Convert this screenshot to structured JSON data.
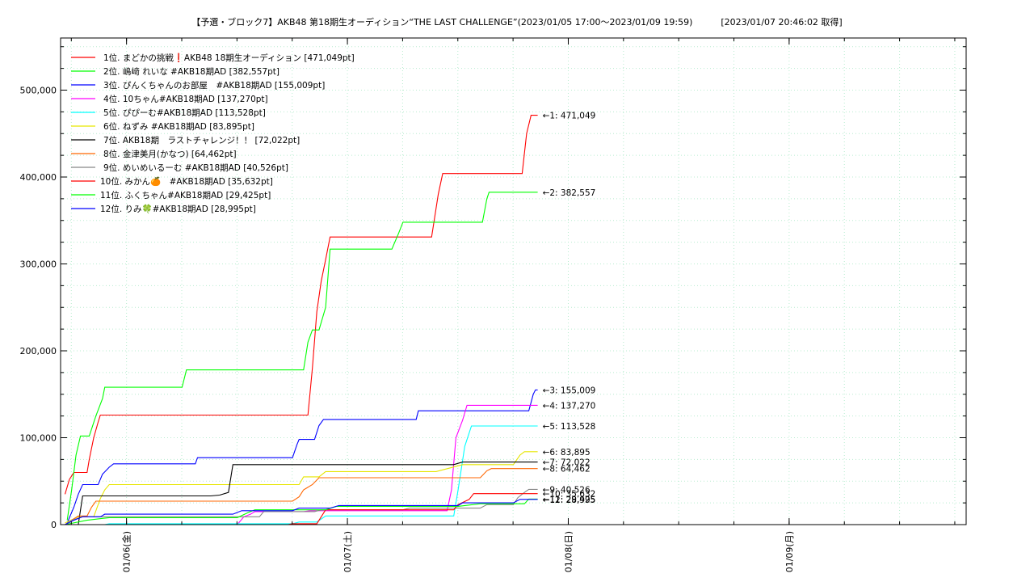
{
  "chart_data": {
    "type": "line",
    "title": "【予選・ブロック7】AKB48 第18期生オーディション“THE LAST CHALLENGE”(2023/01/05 17:00〜2023/01/09 19:59)",
    "fetched": "[2023/01/07 20:46:02 取得]",
    "xlabel": "",
    "ylabel": "",
    "ylim": [
      0,
      560000
    ],
    "xlim": [
      0.0,
      4.1
    ],
    "grid": true,
    "y_ticks": [
      0,
      100000,
      200000,
      300000,
      400000,
      500000
    ],
    "y_tick_labels": [
      "0",
      "100,000",
      "200,000",
      "300,000",
      "400,000",
      "500,000"
    ],
    "x_ticks": [
      0.2986,
      1.2986,
      2.2986,
      3.2986
    ],
    "x_tick_labels": [
      "01/06(金)",
      "01/07(土)",
      "01/08(日)",
      "01/09(月)"
    ],
    "series": [
      {
        "name": "1位. まどかの挑戦❗️AKB48 18期生オーディション [471,049pt]",
        "end_label": "←1: 471,049",
        "color": "#ff0000",
        "points": [
          [
            0.02,
            35000
          ],
          [
            0.04,
            52000
          ],
          [
            0.06,
            60000
          ],
          [
            0.12,
            60000
          ],
          [
            0.13,
            75000
          ],
          [
            0.15,
            100000
          ],
          [
            0.17,
            118000
          ],
          [
            0.18,
            126000
          ],
          [
            1.12,
            126000
          ],
          [
            1.14,
            180000
          ],
          [
            1.16,
            245000
          ],
          [
            1.18,
            280000
          ],
          [
            1.2,
            305000
          ],
          [
            1.22,
            331000
          ],
          [
            1.68,
            331000
          ],
          [
            1.71,
            380000
          ],
          [
            1.73,
            404000
          ],
          [
            2.09,
            404000
          ],
          [
            2.11,
            450000
          ],
          [
            2.13,
            471049
          ],
          [
            2.16,
            471049
          ]
        ]
      },
      {
        "name": "2位. 嶋﨑 れいな #AKB18期AD [382,557pt]",
        "end_label": "←2: 382,557",
        "color": "#00ff00",
        "points": [
          [
            0.03,
            5000
          ],
          [
            0.05,
            40000
          ],
          [
            0.07,
            80000
          ],
          [
            0.09,
            102000
          ],
          [
            0.13,
            102000
          ],
          [
            0.16,
            125000
          ],
          [
            0.19,
            145000
          ],
          [
            0.2,
            158000
          ],
          [
            0.55,
            158000
          ],
          [
            0.57,
            178000
          ],
          [
            1.1,
            178000
          ],
          [
            1.12,
            210000
          ],
          [
            1.14,
            224000
          ],
          [
            1.17,
            224000
          ],
          [
            1.2,
            250000
          ],
          [
            1.22,
            317000
          ],
          [
            1.5,
            317000
          ],
          [
            1.53,
            335000
          ],
          [
            1.55,
            348000
          ],
          [
            1.91,
            348000
          ],
          [
            1.93,
            375000
          ],
          [
            1.94,
            382557
          ],
          [
            2.16,
            382557
          ]
        ]
      },
      {
        "name": "3位. ぴんくちゃんのお部屋　#AKB18期AD [155,009pt]",
        "end_label": "←3: 155,009",
        "color": "#0000ff",
        "points": [
          [
            0.03,
            2000
          ],
          [
            0.06,
            20000
          ],
          [
            0.08,
            35000
          ],
          [
            0.1,
            46000
          ],
          [
            0.17,
            46000
          ],
          [
            0.19,
            58000
          ],
          [
            0.22,
            66000
          ],
          [
            0.24,
            70000
          ],
          [
            0.61,
            70000
          ],
          [
            0.62,
            77000
          ],
          [
            1.05,
            77000
          ],
          [
            1.07,
            92000
          ],
          [
            1.08,
            98000
          ],
          [
            1.15,
            98000
          ],
          [
            1.17,
            114000
          ],
          [
            1.19,
            121000
          ],
          [
            1.61,
            121000
          ],
          [
            1.62,
            131000
          ],
          [
            2.12,
            131000
          ],
          [
            2.14,
            150000
          ],
          [
            2.15,
            155009
          ],
          [
            2.16,
            155009
          ]
        ]
      },
      {
        "name": "4位. 10ちゃん#AKB18期AD [137,270pt]",
        "end_label": "←4: 137,270",
        "color": "#ff00ff",
        "points": [
          [
            0.8,
            0
          ],
          [
            0.83,
            9000
          ],
          [
            0.86,
            12000
          ],
          [
            0.88,
            15000
          ],
          [
            1.1,
            15000
          ],
          [
            1.13,
            16000
          ],
          [
            1.75,
            16000
          ],
          [
            1.77,
            40000
          ],
          [
            1.79,
            100000
          ],
          [
            1.82,
            120000
          ],
          [
            1.84,
            137270
          ],
          [
            2.16,
            137270
          ]
        ]
      },
      {
        "name": "5位. ぴぴーむ#AKB18期AD [113,528pt]",
        "end_label": "←5: 113,528",
        "color": "#00ffff",
        "points": [
          [
            0.0,
            0
          ],
          [
            0.2,
            0
          ],
          [
            0.22,
            1000
          ],
          [
            1.05,
            1000
          ],
          [
            1.08,
            3000
          ],
          [
            1.16,
            3000
          ],
          [
            1.2,
            10000
          ],
          [
            1.78,
            10000
          ],
          [
            1.8,
            40000
          ],
          [
            1.83,
            90000
          ],
          [
            1.86,
            113528
          ],
          [
            2.16,
            113528
          ]
        ]
      },
      {
        "name": "6位. ねずみ #AKB18期AD [83,895pt]",
        "end_label": "←6: 83,895",
        "color": "#e6e600",
        "points": [
          [
            0.02,
            2000
          ],
          [
            0.08,
            9000
          ],
          [
            0.15,
            9000
          ],
          [
            0.18,
            30000
          ],
          [
            0.2,
            40000
          ],
          [
            0.22,
            46000
          ],
          [
            0.7,
            46000
          ],
          [
            1.08,
            46000
          ],
          [
            1.1,
            55000
          ],
          [
            1.17,
            55000
          ],
          [
            1.2,
            61000
          ],
          [
            1.7,
            61000
          ],
          [
            1.82,
            69000
          ],
          [
            2.05,
            69000
          ],
          [
            2.08,
            80000
          ],
          [
            2.1,
            83895
          ],
          [
            2.16,
            83895
          ]
        ]
      },
      {
        "name": "7位. AKB18期　ラストチャレンジ！！ [72,022pt]",
        "end_label": "←7: 72,022",
        "color": "#000000",
        "points": [
          [
            0.0,
            0
          ],
          [
            0.08,
            0
          ],
          [
            0.1,
            33000
          ],
          [
            0.68,
            33000
          ],
          [
            0.72,
            34000
          ],
          [
            0.76,
            37000
          ],
          [
            0.78,
            69000
          ],
          [
            1.78,
            69000
          ],
          [
            1.82,
            72022
          ],
          [
            2.16,
            72022
          ]
        ]
      },
      {
        "name": "8位. 金津美月(かなつ) [64,462pt]",
        "end_label": "←8: 64,462",
        "color": "#ff6600",
        "points": [
          [
            0.02,
            0
          ],
          [
            0.08,
            10000
          ],
          [
            0.12,
            10000
          ],
          [
            0.14,
            20000
          ],
          [
            0.16,
            27000
          ],
          [
            1.05,
            27000
          ],
          [
            1.08,
            32000
          ],
          [
            1.1,
            40000
          ],
          [
            1.14,
            46000
          ],
          [
            1.17,
            54000
          ],
          [
            1.9,
            54000
          ],
          [
            1.93,
            62000
          ],
          [
            1.95,
            64462
          ],
          [
            2.16,
            64462
          ]
        ]
      },
      {
        "name": "9位. めいめいるーむ #AKB18期AD [40,526pt]",
        "end_label": "←9: 40,526",
        "color": "#888888",
        "points": [
          [
            0.02,
            0
          ],
          [
            0.05,
            5000
          ],
          [
            0.1,
            9000
          ],
          [
            0.9,
            9000
          ],
          [
            0.92,
            15000
          ],
          [
            1.15,
            15000
          ],
          [
            1.18,
            17000
          ],
          [
            1.55,
            17000
          ],
          [
            1.58,
            19000
          ],
          [
            1.9,
            19000
          ],
          [
            1.93,
            23000
          ],
          [
            2.05,
            23000
          ],
          [
            2.07,
            31000
          ],
          [
            2.1,
            37000
          ],
          [
            2.12,
            40526
          ],
          [
            2.16,
            40526
          ]
        ]
      },
      {
        "name": "10位. みかん🍊　#AKB18期AD [35,632pt]",
        "end_label": "←10: 35,632",
        "color": "#ff0000",
        "points": [
          [
            0.0,
            0
          ],
          [
            0.6,
            0
          ],
          [
            1.03,
            0
          ],
          [
            1.05,
            1000
          ],
          [
            1.16,
            1000
          ],
          [
            1.2,
            17000
          ],
          [
            1.78,
            17000
          ],
          [
            1.8,
            23000
          ],
          [
            1.85,
            29000
          ],
          [
            1.87,
            35632
          ],
          [
            2.16,
            35632
          ]
        ]
      },
      {
        "name": "11位. ふくちゃん#AKB18期AD [29,425pt]",
        "end_label": "←11: 29,425",
        "color": "#00ff00",
        "points": [
          [
            0.02,
            0
          ],
          [
            0.12,
            5000
          ],
          [
            0.22,
            8000
          ],
          [
            0.8,
            8000
          ],
          [
            0.85,
            14000
          ],
          [
            0.88,
            17000
          ],
          [
            1.2,
            17000
          ],
          [
            1.25,
            21000
          ],
          [
            1.8,
            21000
          ],
          [
            1.9,
            24000
          ],
          [
            2.1,
            24000
          ],
          [
            2.12,
            29425
          ],
          [
            2.16,
            29425
          ]
        ]
      },
      {
        "name": "12位. りみ🍀#AKB18期AD [28,995pt]",
        "end_label": "←12: 28,995",
        "color": "#0000ff",
        "points": [
          [
            0.02,
            0
          ],
          [
            0.06,
            5000
          ],
          [
            0.1,
            9000
          ],
          [
            0.18,
            9000
          ],
          [
            0.2,
            12000
          ],
          [
            0.78,
            12000
          ],
          [
            0.82,
            16000
          ],
          [
            1.05,
            16000
          ],
          [
            1.08,
            19000
          ],
          [
            1.22,
            19000
          ],
          [
            1.26,
            22000
          ],
          [
            1.8,
            22000
          ],
          [
            1.82,
            25000
          ],
          [
            2.05,
            25000
          ],
          [
            2.08,
            28995
          ],
          [
            2.16,
            28995
          ]
        ]
      }
    ]
  }
}
